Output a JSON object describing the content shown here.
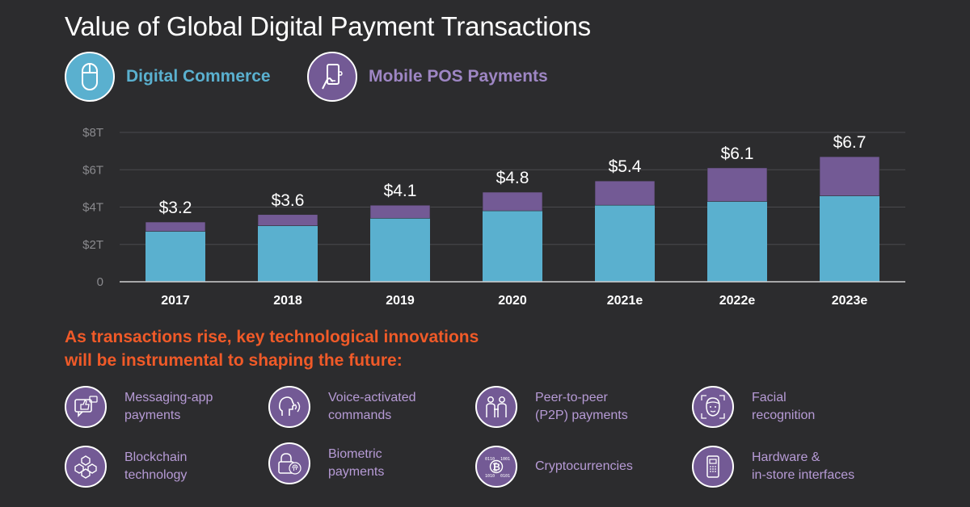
{
  "title": "Value of Global Digital Payment Transactions",
  "legend": [
    {
      "label": "Digital Commerce",
      "color": "#5ab0cf",
      "icon": "mouse-icon"
    },
    {
      "label": "Mobile POS Payments",
      "color": "#735a95",
      "icon": "phone-hand-icon"
    }
  ],
  "chart_data": {
    "type": "bar",
    "stacked": true,
    "categories": [
      "2017",
      "2018",
      "2019",
      "2020",
      "2021e",
      "2022e",
      "2023e"
    ],
    "series": [
      {
        "name": "Digital Commerce",
        "color": "#5ab0cf",
        "values": [
          2.7,
          3.0,
          3.4,
          3.8,
          4.1,
          4.3,
          4.6
        ]
      },
      {
        "name": "Mobile POS Payments",
        "color": "#735a95",
        "values": [
          0.5,
          0.6,
          0.7,
          1.0,
          1.3,
          1.8,
          2.1
        ]
      }
    ],
    "totals_labels": [
      "$3.2",
      "$3.6",
      "$4.1",
      "$4.8",
      "$5.4",
      "$6.1",
      "$6.7"
    ],
    "ytick_labels": [
      "0",
      "$2T",
      "$4T",
      "$6T",
      "$8T"
    ],
    "ytick_values": [
      0,
      2,
      4,
      6,
      8
    ],
    "ylim": [
      0,
      8
    ],
    "grid": true
  },
  "subtitle": {
    "line1": "As transactions rise, key technological innovations",
    "line2": "will be instrumental to shaping the future:"
  },
  "innovations": [
    {
      "lines": [
        "Messaging-app",
        "payments"
      ],
      "icon": "chat-thumbs-up-icon"
    },
    {
      "lines": [
        "Voice-activated",
        "commands"
      ],
      "icon": "voice-face-icon"
    },
    {
      "lines": [
        "Peer-to-peer",
        "(P2P) payments"
      ],
      "icon": "people-exchange-icon"
    },
    {
      "lines": [
        "Facial",
        "recognition"
      ],
      "icon": "face-scan-icon"
    },
    {
      "lines": [
        "Blockchain",
        "technology"
      ],
      "icon": "blockchain-cubes-icon"
    },
    {
      "lines": [
        "Biometric",
        "payments"
      ],
      "icon": "fingerprint-lock-icon"
    },
    {
      "lines": [
        "Cryptocurrencies"
      ],
      "icon": "bitcoin-icon"
    },
    {
      "lines": [
        "Hardware &",
        "in-store interfaces"
      ],
      "icon": "payment-terminal-icon"
    }
  ]
}
